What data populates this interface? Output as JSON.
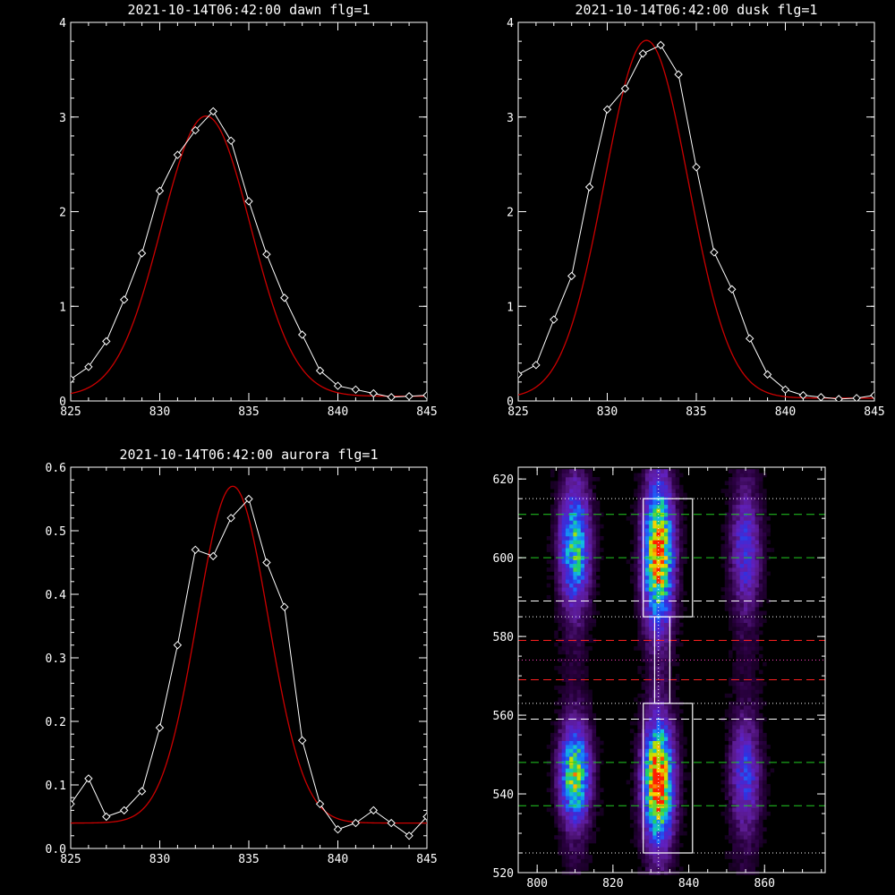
{
  "chart_data": [
    {
      "type": "line",
      "title": "2021-10-14T06:42:00 dawn flg=1",
      "xlabel": "",
      "ylabel": "",
      "xlim": [
        825,
        845
      ],
      "ylim": [
        0,
        4
      ],
      "xticks": [
        "825",
        "830",
        "835",
        "840",
        "845"
      ],
      "yticks": [
        "0",
        "1",
        "2",
        "3",
        "4"
      ],
      "colors": {
        "data": "#ffffff",
        "fit": "#cc0000"
      },
      "series": [
        {
          "style": "data-markers",
          "x": [
            825,
            826,
            827,
            828,
            829,
            830,
            831,
            832,
            833,
            834,
            835,
            836,
            837,
            838,
            839,
            840,
            841,
            842,
            843,
            844,
            845
          ],
          "y": [
            0.23,
            0.36,
            0.63,
            1.07,
            1.56,
            2.22,
            2.6,
            2.86,
            3.06,
            2.75,
            2.11,
            1.55,
            1.09,
            0.7,
            0.32,
            0.16,
            0.12,
            0.08,
            0.04,
            0.05,
            0.06
          ]
        },
        {
          "style": "fit-curve",
          "gauss": {
            "amp": 2.96,
            "center": 832.6,
            "sigma": 2.5,
            "base": 0.05
          }
        }
      ]
    },
    {
      "type": "line",
      "title": "2021-10-14T06:42:00 dusk flg=1",
      "xlabel": "",
      "ylabel": "",
      "xlim": [
        825,
        845
      ],
      "ylim": [
        0,
        4
      ],
      "xticks": [
        "825",
        "830",
        "835",
        "840",
        "845"
      ],
      "yticks": [
        "0",
        "1",
        "2",
        "3",
        "4"
      ],
      "colors": {
        "data": "#ffffff",
        "fit": "#cc0000"
      },
      "series": [
        {
          "style": "data-markers",
          "x": [
            825,
            826,
            827,
            828,
            829,
            830,
            831,
            832,
            833,
            834,
            835,
            836,
            837,
            838,
            839,
            840,
            841,
            842,
            843,
            844,
            845
          ],
          "y": [
            0.28,
            0.38,
            0.86,
            1.32,
            2.26,
            3.08,
            3.3,
            3.67,
            3.76,
            3.45,
            2.47,
            1.57,
            1.18,
            0.66,
            0.28,
            0.12,
            0.06,
            0.04,
            0.02,
            0.03,
            0.06
          ]
        },
        {
          "style": "fit-curve",
          "gauss": {
            "amp": 3.78,
            "center": 832.2,
            "sigma": 2.35,
            "base": 0.03
          }
        }
      ]
    },
    {
      "type": "line",
      "title": "2021-10-14T06:42:00 aurora flg=1",
      "xlabel": "",
      "ylabel": "",
      "xlim": [
        825,
        845
      ],
      "ylim": [
        0,
        0.6
      ],
      "xticks": [
        "825",
        "830",
        "835",
        "840",
        "845"
      ],
      "yticks": [
        "0.0",
        "0.1",
        "0.2",
        "0.3",
        "0.4",
        "0.5",
        "0.6"
      ],
      "colors": {
        "data": "#ffffff",
        "fit": "#cc0000"
      },
      "series": [
        {
          "style": "data-markers",
          "x": [
            825,
            826,
            827,
            828,
            829,
            830,
            831,
            832,
            833,
            834,
            835,
            836,
            837,
            838,
            839,
            840,
            841,
            842,
            843,
            844,
            845
          ],
          "y": [
            0.07,
            0.11,
            0.05,
            0.06,
            0.09,
            0.19,
            0.32,
            0.47,
            0.46,
            0.52,
            0.55,
            0.45,
            0.38,
            0.17,
            0.07,
            0.03,
            0.04,
            0.06,
            0.04,
            0.02,
            0.05
          ]
        },
        {
          "style": "fit-curve",
          "gauss": {
            "amp": 0.53,
            "center": 834.1,
            "sigma": 2.0,
            "base": 0.04
          }
        }
      ]
    },
    {
      "type": "heatmap",
      "title": "",
      "xlim": [
        795,
        876
      ],
      "ylim": [
        520,
        623
      ],
      "xticks": [
        800,
        820,
        840,
        860
      ],
      "yticks": [
        520,
        540,
        560,
        580,
        600,
        620
      ],
      "colorscale": [
        "#000000",
        "#2a0040",
        "#5a1a8c",
        "#6020c0",
        "#3030e0",
        "#1a70ff",
        "#10c0e0",
        "#20d060",
        "#c0e000",
        "#ffd000",
        "#ff2000"
      ],
      "emission_columns": [
        {
          "center": 810,
          "width": 4,
          "blobs": [
            {
              "y": 603,
              "dy": 10,
              "peak": 0.6
            },
            {
              "y": 545,
              "dy": 8,
              "peak": 0.72
            }
          ]
        },
        {
          "center": 832,
          "width": 4,
          "blobs": [
            {
              "y": 601,
              "dy": 12,
              "peak": 0.9
            },
            {
              "y": 543,
              "dy": 10,
              "peak": 1.0
            }
          ]
        },
        {
          "center": 855,
          "width": 4,
          "blobs": [
            {
              "y": 602,
              "dy": 10,
              "peak": 0.3
            },
            {
              "y": 545,
              "dy": 9,
              "peak": 0.32
            }
          ]
        }
      ],
      "vline": {
        "x": 832,
        "color": "#ffffff",
        "style": "dotted"
      },
      "boxes": [
        {
          "x0": 828,
          "x1": 841,
          "y0": 585,
          "y1": 615,
          "color": "#ffffff"
        },
        {
          "x0": 831,
          "x1": 835,
          "y0": 563,
          "y1": 585,
          "color": "#ffffff"
        },
        {
          "x0": 828,
          "x1": 841,
          "y0": 525,
          "y1": 563,
          "color": "#ffffff"
        }
      ],
      "hlines": [
        {
          "y": 615,
          "color": "#ffffff",
          "style": "dotted"
        },
        {
          "y": 611,
          "color": "#22cc22",
          "style": "dashed"
        },
        {
          "y": 600,
          "color": "#22cc22",
          "style": "dashed"
        },
        {
          "y": 589,
          "color": "#ffffff",
          "style": "dashed"
        },
        {
          "y": 585,
          "color": "#ffffff",
          "style": "dotted"
        },
        {
          "y": 579,
          "color": "#ff2020",
          "style": "dashed"
        },
        {
          "y": 574,
          "color": "#ff40c0",
          "style": "dotted"
        },
        {
          "y": 569,
          "color": "#ff2020",
          "style": "dashed"
        },
        {
          "y": 563,
          "color": "#ffffff",
          "style": "dotted"
        },
        {
          "y": 559,
          "color": "#ffffff",
          "style": "dashed"
        },
        {
          "y": 548,
          "color": "#22cc22",
          "style": "dashed"
        },
        {
          "y": 537,
          "color": "#22cc22",
          "style": "dashed"
        },
        {
          "y": 525,
          "color": "#ffffff",
          "style": "dotted"
        }
      ]
    }
  ]
}
